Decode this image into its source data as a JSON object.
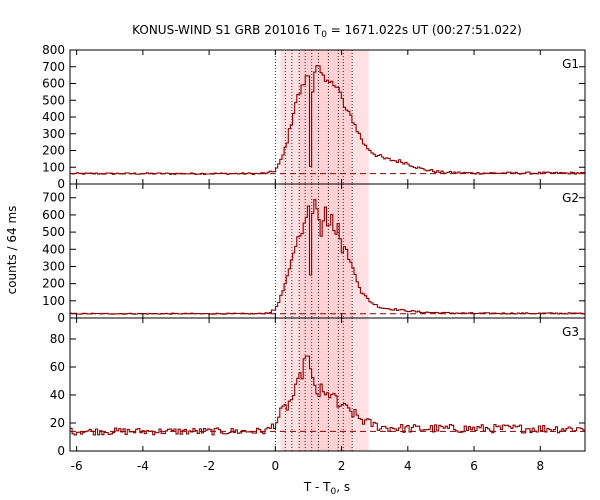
{
  "chart_data": {
    "type": "line",
    "title_prefix": "KONUS-WIND S1 GRB 201016 T",
    "title_sub": "0",
    "title_suffix": " = 1671.022s UT (00:27:51.022)",
    "xlabel_prefix": "T - T",
    "xlabel_sub": "0",
    "xlabel_suffix": ", s",
    "ylabel": "counts / 64 ms",
    "xlim": [
      -6.2,
      9.35
    ],
    "x_ticks": [
      -6,
      -4,
      -2,
      0,
      2,
      4,
      6,
      8
    ],
    "x_tick_labels": [
      "-6",
      "-4",
      "-2",
      "0",
      "2",
      "4",
      "6",
      "8"
    ],
    "line_color": "#8b0000",
    "shade_color": "#ffc8cc",
    "shaded_interval": [
      0.15,
      2.82
    ],
    "inner_shaded_interval": [
      0.72,
      2.32
    ],
    "dotted_lines_x": [
      0.0,
      0.3,
      0.5,
      0.72,
      0.9,
      1.1,
      1.3,
      1.6,
      1.9,
      2.05,
      2.32
    ],
    "panels": [
      {
        "name": "G1",
        "ylim": [
          0,
          800
        ],
        "y_ticks": [
          0,
          100,
          200,
          300,
          400,
          500,
          600,
          700,
          800
        ],
        "y_tick_labels": [
          "0",
          "100",
          "200",
          "300",
          "400",
          "500",
          "600",
          "700",
          "800"
        ],
        "background": 62,
        "noise": 5,
        "points": [
          [
            -6.2,
            62
          ],
          [
            -0.5,
            62
          ],
          [
            -0.2,
            66
          ],
          [
            0.0,
            80
          ],
          [
            0.2,
            150
          ],
          [
            0.35,
            250
          ],
          [
            0.5,
            380
          ],
          [
            0.6,
            480
          ],
          [
            0.7,
            530
          ],
          [
            0.8,
            570
          ],
          [
            0.9,
            620
          ],
          [
            1.0,
            650
          ],
          [
            1.02,
            100
          ],
          [
            1.08,
            110
          ],
          [
            1.12,
            560
          ],
          [
            1.2,
            690
          ],
          [
            1.3,
            700
          ],
          [
            1.4,
            640
          ],
          [
            1.5,
            610
          ],
          [
            1.6,
            600
          ],
          [
            1.7,
            640
          ],
          [
            1.8,
            580
          ],
          [
            1.9,
            570
          ],
          [
            2.0,
            520
          ],
          [
            2.1,
            450
          ],
          [
            2.2,
            420
          ],
          [
            2.3,
            400
          ],
          [
            2.5,
            310
          ],
          [
            2.7,
            230
          ],
          [
            3.0,
            180
          ],
          [
            3.3,
            150
          ],
          [
            3.6,
            140
          ],
          [
            3.9,
            130
          ],
          [
            4.1,
            115
          ],
          [
            4.4,
            90
          ],
          [
            5.0,
            70
          ],
          [
            6.0,
            65
          ],
          [
            9.35,
            65
          ]
        ]
      },
      {
        "name": "G2",
        "ylim": [
          0,
          780
        ],
        "y_ticks": [
          0,
          100,
          200,
          300,
          400,
          500,
          600,
          700
        ],
        "y_tick_labels": [
          "0",
          "100",
          "200",
          "300",
          "400",
          "500",
          "600",
          "700"
        ],
        "background": 25,
        "noise": 3,
        "points": [
          [
            -6.2,
            25
          ],
          [
            -0.5,
            25
          ],
          [
            -0.2,
            30
          ],
          [
            0.0,
            50
          ],
          [
            0.2,
            140
          ],
          [
            0.4,
            260
          ],
          [
            0.55,
            380
          ],
          [
            0.7,
            480
          ],
          [
            0.8,
            500
          ],
          [
            0.9,
            560
          ],
          [
            1.0,
            640
          ],
          [
            1.02,
            200
          ],
          [
            1.06,
            210
          ],
          [
            1.1,
            580
          ],
          [
            1.2,
            710
          ],
          [
            1.3,
            600
          ],
          [
            1.4,
            450
          ],
          [
            1.5,
            680
          ],
          [
            1.6,
            500
          ],
          [
            1.7,
            620
          ],
          [
            1.8,
            470
          ],
          [
            1.9,
            560
          ],
          [
            2.0,
            380
          ],
          [
            2.1,
            420
          ],
          [
            2.2,
            360
          ],
          [
            2.4,
            260
          ],
          [
            2.6,
            150
          ],
          [
            2.9,
            90
          ],
          [
            3.2,
            60
          ],
          [
            3.6,
            50
          ],
          [
            4.0,
            42
          ],
          [
            4.4,
            34
          ],
          [
            5.0,
            30
          ],
          [
            6.0,
            27
          ],
          [
            9.35,
            27
          ]
        ]
      },
      {
        "name": "G3",
        "ylim": [
          0,
          95
        ],
        "y_ticks": [
          0,
          20,
          40,
          60,
          80
        ],
        "y_tick_labels": [
          "0",
          "20",
          "40",
          "60",
          "80"
        ],
        "background": 14,
        "noise": 2.5,
        "points": [
          [
            -6.2,
            14
          ],
          [
            -0.5,
            14
          ],
          [
            -0.2,
            15
          ],
          [
            0.0,
            20
          ],
          [
            0.2,
            28
          ],
          [
            0.4,
            33
          ],
          [
            0.6,
            42
          ],
          [
            0.75,
            52
          ],
          [
            0.85,
            60
          ],
          [
            0.92,
            63
          ],
          [
            0.95,
            80
          ],
          [
            1.0,
            66
          ],
          [
            1.1,
            50
          ],
          [
            1.2,
            45
          ],
          [
            1.3,
            40
          ],
          [
            1.4,
            44
          ],
          [
            1.5,
            38
          ],
          [
            1.6,
            40
          ],
          [
            1.7,
            42
          ],
          [
            1.8,
            38
          ],
          [
            1.9,
            30
          ],
          [
            2.0,
            35
          ],
          [
            2.1,
            30
          ],
          [
            2.3,
            28
          ],
          [
            2.5,
            24
          ],
          [
            2.8,
            20
          ],
          [
            3.2,
            17
          ],
          [
            4.0,
            16
          ],
          [
            9.35,
            16
          ]
        ]
      }
    ]
  }
}
